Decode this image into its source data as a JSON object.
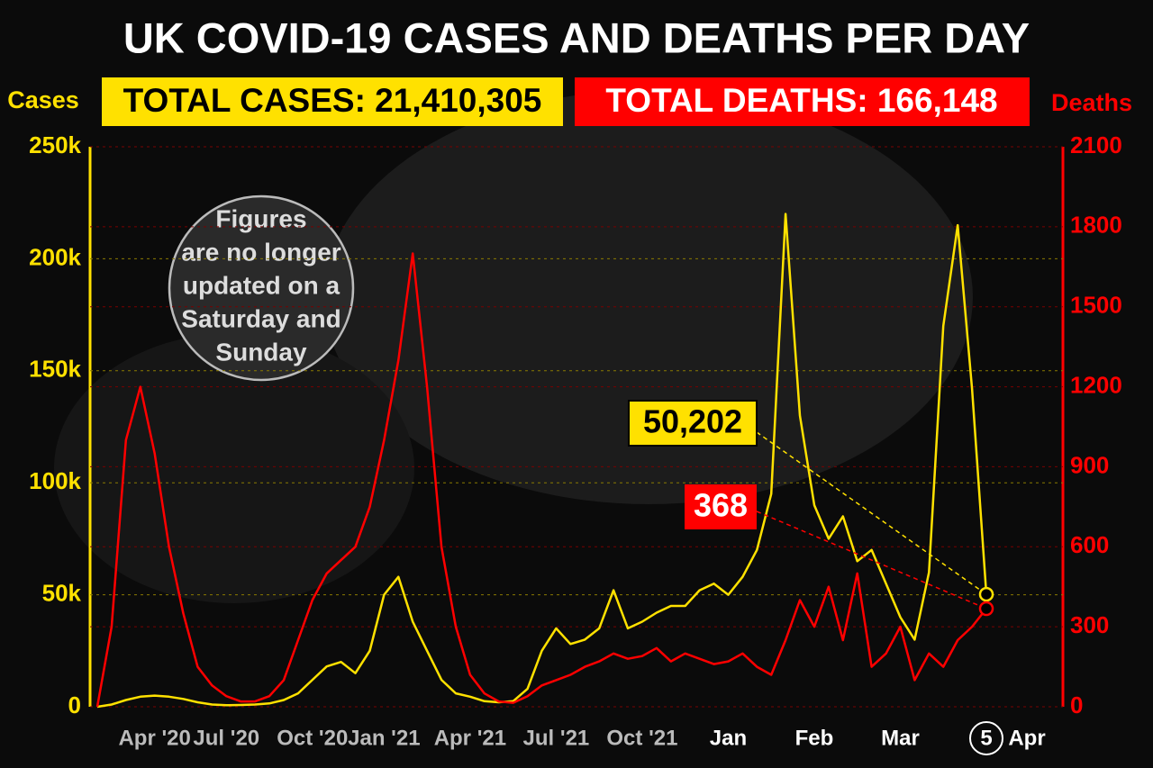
{
  "chart_data": {
    "type": "line",
    "title": "UK COVID-19 CASES AND DEATHS PER DAY",
    "total_cases": "TOTAL CASES: 21,410,305",
    "total_deaths": "TOTAL DEATHS: 166,148",
    "y_label": "Cases",
    "y2_label": "Deaths",
    "note": [
      "Figures",
      "are no longer",
      "updated on a",
      "Saturday and",
      "Sunday"
    ],
    "x_end_label": "Apr",
    "categories": [
      null,
      null,
      null,
      null,
      "Apr '20",
      null,
      null,
      null,
      null,
      "Jul '20",
      null,
      null,
      null,
      null,
      null,
      "Oct '20",
      null,
      null,
      null,
      null,
      "Jan '21",
      null,
      null,
      null,
      null,
      null,
      "Apr '21",
      null,
      null,
      null,
      null,
      null,
      "Jul '21",
      null,
      null,
      null,
      null,
      null,
      "Oct '21",
      null,
      null,
      null,
      null,
      null,
      "Jan",
      null,
      null,
      null,
      null,
      null,
      "Feb",
      null,
      null,
      null,
      null,
      null,
      "Mar",
      null,
      null,
      null,
      null,
      null,
      "5"
    ],
    "series": [
      {
        "name": "Cases",
        "color": "#ffe100",
        "last_label": "50,202",
        "values": [
          0,
          1000,
          3000,
          4500,
          5000,
          4500,
          3500,
          2000,
          1000,
          700,
          800,
          1000,
          1500,
          3000,
          6000,
          12000,
          18000,
          20000,
          15000,
          25000,
          50000,
          58000,
          38000,
          25000,
          12000,
          6000,
          4500,
          2500,
          2000,
          2500,
          8000,
          25000,
          35000,
          28000,
          30000,
          35000,
          52000,
          35000,
          38000,
          42000,
          45000,
          45000,
          52000,
          55000,
          50000,
          58000,
          70000,
          95000,
          220000,
          130000,
          90000,
          75000,
          85000,
          65000,
          70000,
          55000,
          40000,
          30000,
          60000,
          170000,
          215000,
          142000,
          50202
        ]
      },
      {
        "name": "Deaths",
        "color": "#ff0000",
        "axis": "y2",
        "values": [
          0,
          300,
          1000,
          1200,
          950,
          600,
          350,
          150,
          80,
          40,
          20,
          20,
          40,
          100,
          250,
          400,
          500,
          550,
          600,
          750,
          1000,
          1300,
          1700,
          1200,
          600,
          300,
          120,
          50,
          20,
          15,
          40,
          80,
          100,
          120,
          150,
          170,
          200,
          180,
          190,
          220,
          170,
          200,
          180,
          160,
          170,
          200,
          150,
          120,
          250,
          400,
          300,
          450,
          250,
          500,
          150,
          200,
          300,
          100,
          200,
          150,
          250,
          300,
          368
        ]
      }
    ],
    "ylim": [
      0,
      250000
    ],
    "yticks": [
      0,
      {
        "value": 50000,
        "label": "50k"
      },
      {
        "value": 100000,
        "label": "100k"
      },
      {
        "value": 150000,
        "label": "150k"
      },
      {
        "value": 200000,
        "label": "200k"
      },
      {
        "value": 250000,
        "label": "250k"
      }
    ],
    "y2lim": [
      0,
      2100
    ],
    "y2ticks": [
      0,
      300,
      600,
      900,
      1200,
      1500,
      1800,
      2100
    ],
    "grid": true
  }
}
